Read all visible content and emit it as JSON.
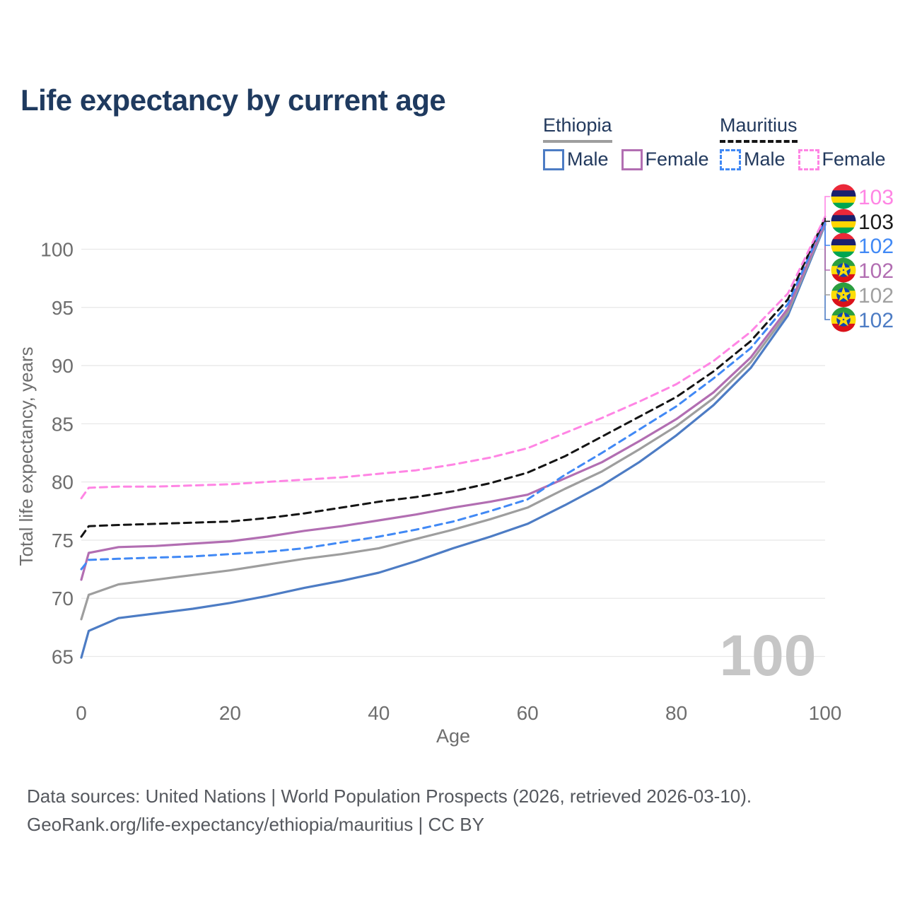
{
  "title": "Life expectancy by current age",
  "legend": {
    "groups": [
      {
        "name": "Ethiopia",
        "underline_style": "solid",
        "underline_color": "#9e9e9e",
        "items": [
          {
            "label": "Male",
            "color": "#4d7cc4",
            "dashed": false
          },
          {
            "label": "Female",
            "color": "#b26eb2",
            "dashed": false
          }
        ]
      },
      {
        "name": "Mauritius",
        "underline_style": "dashed",
        "underline_color": "#141414",
        "items": [
          {
            "label": "Male",
            "color": "#4189f5",
            "dashed": true
          },
          {
            "label": "Female",
            "color": "#ff85e4",
            "dashed": true
          }
        ]
      }
    ]
  },
  "chart_data": {
    "type": "line",
    "title": "Life expectancy by current age",
    "xlabel": "Age",
    "ylabel": "Total life expectancy, years",
    "xlim": [
      0,
      100
    ],
    "ylim": [
      65,
      100
    ],
    "xticks": [
      0,
      20,
      40,
      60,
      80,
      100
    ],
    "yticks": [
      65,
      70,
      75,
      80,
      85,
      90,
      95,
      100
    ],
    "grid": "horizontal-only",
    "legend_position": "top-right",
    "watermark": "100",
    "watermark_color": "#c6c6c6",
    "grid_color": "#e8e8e8",
    "tick_color": "#6e6e6e",
    "x": [
      0,
      1,
      5,
      10,
      15,
      20,
      25,
      30,
      35,
      40,
      45,
      50,
      55,
      60,
      65,
      70,
      75,
      80,
      85,
      90,
      95,
      100
    ],
    "series": [
      {
        "name": "Ethiopia Male",
        "country": "Ethiopia",
        "sex": "Male",
        "color": "#4d7cc4",
        "dashed": false,
        "end_label_row": 5,
        "values": [
          64.9,
          67.2,
          68.3,
          68.7,
          69.1,
          69.6,
          70.2,
          70.9,
          71.5,
          72.2,
          73.2,
          74.3,
          75.3,
          76.4,
          78.0,
          79.7,
          81.7,
          84.0,
          86.6,
          89.8,
          94.3,
          102.1
        ]
      },
      {
        "name": "Ethiopia Both sexes",
        "country": "Ethiopia",
        "sex": "Both",
        "color": "#9e9e9e",
        "dashed": false,
        "end_label_row": 4,
        "values": [
          68.2,
          70.3,
          71.2,
          71.6,
          72.0,
          72.4,
          72.9,
          73.4,
          73.8,
          74.3,
          75.1,
          75.9,
          76.8,
          77.8,
          79.4,
          80.9,
          82.8,
          84.8,
          87.2,
          90.3,
          94.6,
          102.2
        ]
      },
      {
        "name": "Ethiopia Female",
        "country": "Ethiopia",
        "sex": "Female",
        "color": "#b26eb2",
        "dashed": false,
        "end_label_row": 3,
        "values": [
          71.6,
          73.9,
          74.4,
          74.5,
          74.7,
          74.9,
          75.3,
          75.8,
          76.2,
          76.7,
          77.2,
          77.8,
          78.3,
          78.9,
          80.3,
          81.7,
          83.5,
          85.4,
          87.7,
          90.7,
          94.9,
          102.3
        ]
      },
      {
        "name": "Mauritius Male",
        "country": "Mauritius",
        "sex": "Male",
        "color": "#4189f5",
        "dashed": true,
        "end_label_row": 2,
        "values": [
          72.5,
          73.3,
          73.4,
          73.5,
          73.6,
          73.8,
          74.0,
          74.3,
          74.8,
          75.3,
          75.9,
          76.6,
          77.5,
          78.5,
          80.6,
          82.5,
          84.5,
          86.5,
          88.9,
          91.5,
          95.3,
          102.5
        ]
      },
      {
        "name": "Mauritius Both sexes",
        "country": "Mauritius",
        "sex": "Both",
        "color": "#141414",
        "dashed": true,
        "end_label_row": 1,
        "values": [
          75.3,
          76.2,
          76.3,
          76.4,
          76.5,
          76.6,
          76.9,
          77.3,
          77.8,
          78.3,
          78.7,
          79.2,
          79.9,
          80.8,
          82.2,
          83.9,
          85.6,
          87.3,
          89.5,
          92.1,
          95.7,
          102.7
        ]
      },
      {
        "name": "Mauritius Female",
        "country": "Mauritius",
        "sex": "Female",
        "color": "#ff85e4",
        "dashed": true,
        "end_label_row": 0,
        "values": [
          78.6,
          79.5,
          79.6,
          79.6,
          79.7,
          79.8,
          80.0,
          80.2,
          80.4,
          80.7,
          81.0,
          81.5,
          82.1,
          82.9,
          84.2,
          85.5,
          86.9,
          88.4,
          90.4,
          92.9,
          96.2,
          102.8
        ]
      }
    ],
    "end_labels": [
      {
        "flag": "mauritius",
        "text": "103",
        "color": "#ff85e4"
      },
      {
        "flag": "mauritius",
        "text": "103",
        "color": "#1a1a1a"
      },
      {
        "flag": "mauritius",
        "text": "102",
        "color": "#4189f5"
      },
      {
        "flag": "ethiopia",
        "text": "102",
        "color": "#b26eb2"
      },
      {
        "flag": "ethiopia",
        "text": "102",
        "color": "#a0a0a0"
      },
      {
        "flag": "ethiopia",
        "text": "102",
        "color": "#4d7cc4"
      }
    ],
    "flag_colors": {
      "mauritius": [
        "#EA2839",
        "#1A206D",
        "#FFD500",
        "#00A551"
      ],
      "ethiopia": [
        "#2B9E3F",
        "#FCDD09",
        "#DA121A"
      ],
      "ethiopia_emblem_disc": "#0F47AF",
      "ethiopia_emblem_star": "#FCDD09"
    }
  },
  "footer": {
    "line1": "Data sources: United Nations | World Population Prospects (2026, retrieved 2026-03-10).",
    "line2": "GeoRank.org/life-expectancy/ethiopia/mauritius | CC BY"
  }
}
